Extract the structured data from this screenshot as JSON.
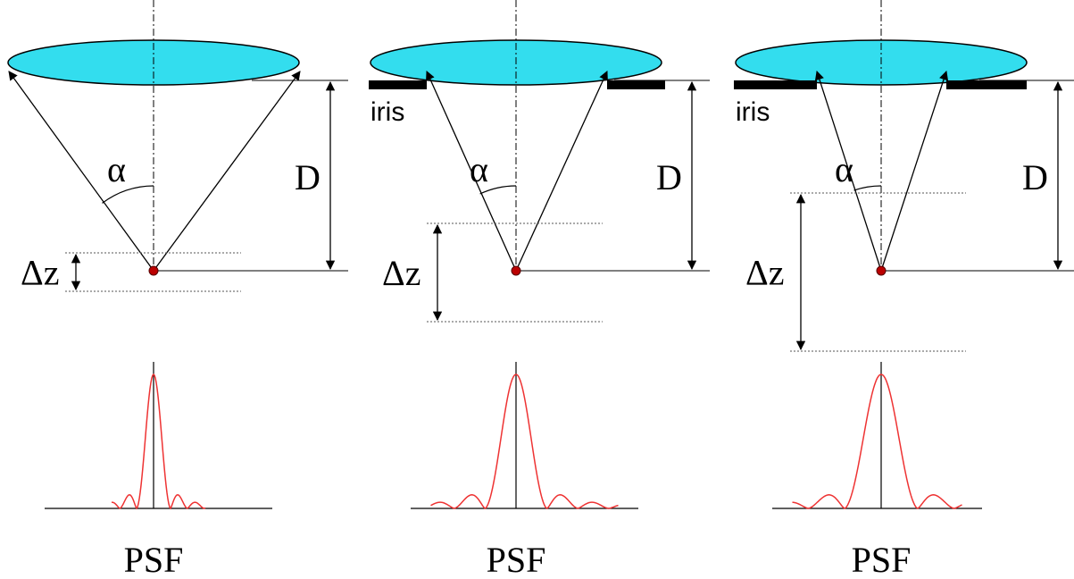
{
  "panels": [
    {
      "alpha": "α",
      "distance": "D",
      "depth": "Δz",
      "caption": "PSF"
    },
    {
      "iris": "iris",
      "alpha": "α",
      "distance": "D",
      "depth": "Δz",
      "caption": "PSF"
    },
    {
      "iris": "iris",
      "alpha": "α",
      "distance": "D",
      "depth": "Δz",
      "caption": "PSF"
    }
  ]
}
